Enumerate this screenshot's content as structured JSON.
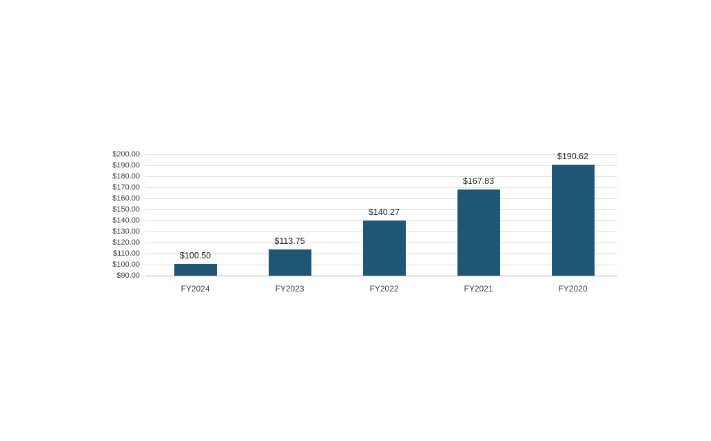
{
  "page": {
    "background_color": "#ffffff"
  },
  "chart_data": {
    "type": "bar",
    "title": "",
    "xlabel": "",
    "ylabel": "",
    "categories": [
      "FY2024",
      "FY2023",
      "FY2022",
      "FY2021",
      "FY2020"
    ],
    "values": [
      100.5,
      113.75,
      140.27,
      167.83,
      190.62
    ],
    "data_labels": [
      "$100.50",
      "$113.75",
      "$140.27",
      "$167.83",
      "$190.62"
    ],
    "y_tick_values": [
      200,
      190,
      180,
      170,
      160,
      150,
      140,
      130,
      120,
      110,
      100,
      90
    ],
    "y_tick_labels": [
      "$200.00",
      "$190.00",
      "$180.00",
      "$170.00",
      "$160.00",
      "$150.00",
      "$140.00",
      "$130.00",
      "$120.00",
      "$110.00",
      "$100.00",
      "$90.00"
    ],
    "ylim": [
      90,
      200
    ],
    "grid": "horizontal",
    "legend": "none",
    "colors": {
      "bar": "#1e5776",
      "gridline": "#d9d9d9",
      "axis_line": "#adadad",
      "tick_label": "#3d3d3d",
      "data_label": "#1f1f1f"
    }
  }
}
